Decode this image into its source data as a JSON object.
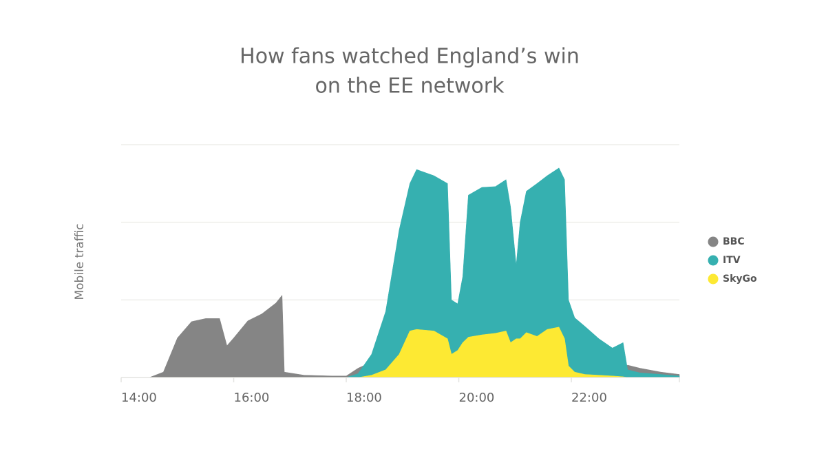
{
  "chart_data": {
    "type": "area",
    "title": [
      "How fans watched England’s win",
      "on the EE network"
    ],
    "y_label": "Mobile traffic",
    "x": [
      14.0,
      14.5,
      14.75,
      15.0,
      15.25,
      15.5,
      15.75,
      15.88,
      16.0,
      16.25,
      16.5,
      16.75,
      16.86,
      16.9,
      17.25,
      17.75,
      18.0,
      18.21,
      18.45,
      18.7,
      18.94,
      19.13,
      19.25,
      19.56,
      19.8,
      19.87,
      19.98,
      20.07,
      20.17,
      20.41,
      20.65,
      20.84,
      20.92,
      21.02,
      21.09,
      21.2,
      21.39,
      21.57,
      21.78,
      21.88,
      21.95,
      22.06,
      22.24,
      22.49,
      22.73,
      22.92,
      23.0,
      23.22,
      23.59,
      23.92
    ],
    "series": [
      {
        "name": "BBC",
        "color": "#858585",
        "values": [
          0,
          0,
          0.07,
          0.51,
          0.72,
          0.76,
          0.76,
          0.41,
          0.51,
          0.73,
          0.82,
          0.96,
          1.06,
          0.07,
          0.03,
          0.02,
          0.02,
          0.12,
          0.2,
          0.15,
          0.1,
          0.1,
          0.1,
          0.1,
          0.1,
          0.1,
          0.1,
          0.1,
          0.1,
          0.1,
          0.1,
          0.1,
          0.1,
          0.1,
          0.1,
          0.1,
          0.1,
          0.1,
          0.1,
          0.1,
          0.1,
          0.1,
          0.1,
          0.1,
          0.1,
          0.12,
          0.16,
          0.12,
          0.07,
          0.04
        ]
      },
      {
        "name": "ITV",
        "color": "#36b0b0",
        "values": [
          0,
          0,
          0,
          0,
          0,
          0,
          0,
          0,
          0,
          0,
          0,
          0,
          0,
          0,
          0,
          0,
          0,
          0.05,
          0.3,
          0.85,
          1.9,
          2.5,
          2.68,
          2.6,
          2.5,
          1.0,
          0.95,
          1.3,
          2.35,
          2.45,
          2.46,
          2.55,
          2.2,
          1.45,
          2.0,
          2.4,
          2.5,
          2.6,
          2.7,
          2.55,
          1.0,
          0.77,
          0.66,
          0.5,
          0.38,
          0.45,
          0.1,
          0.06,
          0.04,
          0.02
        ]
      },
      {
        "name": "SkyGo",
        "color": "#fde933",
        "values": [
          0,
          0,
          0,
          0,
          0,
          0,
          0,
          0,
          0,
          0,
          0,
          0,
          0,
          0,
          0,
          0,
          0,
          0,
          0.03,
          0.1,
          0.3,
          0.6,
          0.62,
          0.6,
          0.5,
          0.3,
          0.35,
          0.45,
          0.52,
          0.55,
          0.57,
          0.6,
          0.45,
          0.5,
          0.5,
          0.58,
          0.53,
          0.62,
          0.65,
          0.5,
          0.15,
          0.07,
          0.04,
          0.03,
          0.02,
          0.01,
          0,
          0,
          0,
          0
        ]
      }
    ],
    "xlim": [
      14,
      23.92
    ],
    "xticks": [
      {
        "value": 14,
        "label": "14:00"
      },
      {
        "value": 16,
        "label": "16:00"
      },
      {
        "value": 18,
        "label": "18:00"
      },
      {
        "value": 20,
        "label": "20:00"
      },
      {
        "value": 22,
        "label": "22:00"
      }
    ],
    "ylim": [
      0,
      3
    ],
    "yticks": [
      1,
      2,
      3
    ],
    "grid": true,
    "legend": "right"
  }
}
